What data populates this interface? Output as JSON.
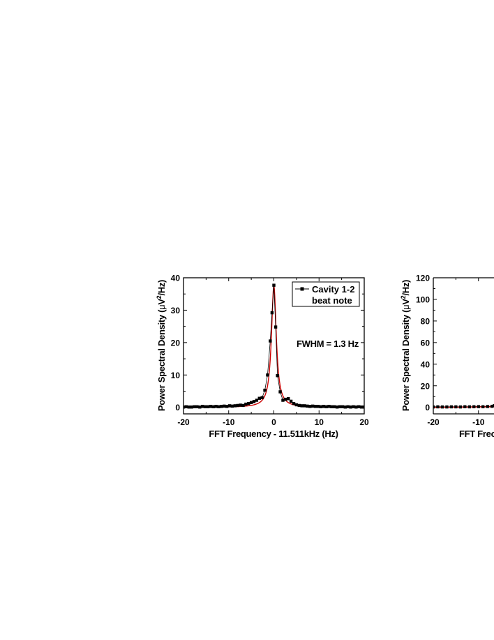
{
  "charts": [
    {
      "type": "scatter",
      "xlabel": "FFT Frequency - 11.511kHz (Hz)",
      "ylabel_main": "Power Spectral Density (",
      "ylabel_mu": "μ",
      "ylabel_v": "V",
      "ylabel_sup": "2",
      "ylabel_end": "/Hz)",
      "xlim": [
        -20,
        20
      ],
      "ylim": [
        -2,
        40
      ],
      "xticks": [
        -20,
        -10,
        0,
        10,
        20
      ],
      "yticks": [
        0,
        10,
        20,
        30,
        40
      ],
      "legend_line1": "Cavity 1-2",
      "legend_line2": "beat note",
      "legend_position": "top-right",
      "annotation": "FWHM = 1.3 Hz",
      "series": [
        {
          "name": "Cavity 1-2 beat note",
          "color": "#000000",
          "marker": "square",
          "x": [
            -20,
            -19.4,
            -18.8,
            -18.2,
            -17.6,
            -17,
            -16.4,
            -15.8,
            -15.2,
            -14.6,
            -14,
            -13.4,
            -12.8,
            -12.2,
            -11.6,
            -11,
            -10.4,
            -9.8,
            -9.2,
            -8.6,
            -8,
            -7.4,
            -6.8,
            -6.2,
            -5.6,
            -5,
            -4.4,
            -3.8,
            -3.2,
            -2.6,
            -2,
            -1.4,
            -0.8,
            -0.4,
            0,
            0.4,
            0.8,
            1.4,
            2,
            2.6,
            3.2,
            3.8,
            4.4,
            5,
            5.6,
            6.2,
            6.8,
            7.4,
            8,
            8.6,
            9.2,
            9.8,
            10.4,
            11,
            11.6,
            12.2,
            12.8,
            13.4,
            14,
            14.6,
            15.2,
            15.8,
            16.4,
            17,
            17.6,
            18.2,
            18.8,
            19.4,
            20
          ],
          "y": [
            0.1,
            0.2,
            0.1,
            0.1,
            0.2,
            0.2,
            0.1,
            0.3,
            0.2,
            0.2,
            0.3,
            0.2,
            0.3,
            0.2,
            0.3,
            0.4,
            0.3,
            0.5,
            0.4,
            0.5,
            0.6,
            0.7,
            0.6,
            1.0,
            1.2,
            1.5,
            1.8,
            2.2,
            2.8,
            3.0,
            5.3,
            10.0,
            20.5,
            29.2,
            37.7,
            24.8,
            9.8,
            4.8,
            2.2,
            2.5,
            2.7,
            1.9,
            1.2,
            0.8,
            0.6,
            0.5,
            0.5,
            0.4,
            0.3,
            0.4,
            0.3,
            0.3,
            0.2,
            0.3,
            0.2,
            0.3,
            0.2,
            0.2,
            0.1,
            0.2,
            0.2,
            0.1,
            0.2,
            0.1,
            0.2,
            0.1,
            0.2,
            0.1,
            0.1
          ]
        },
        {
          "name": "fit",
          "color": "#cc0000",
          "model": "lorentzian",
          "center": 0,
          "fwhm": 1.3,
          "peak": 37.5,
          "offset": 0
        }
      ]
    },
    {
      "type": "scatter",
      "xlabel": "FFT Frec",
      "ylabel_main": "Power Spectral Density (",
      "ylabel_mu": "μ",
      "ylabel_v": "V",
      "ylabel_sup": "2",
      "ylabel_end": "/Hz)",
      "xlim": [
        -20,
        20
      ],
      "ylim": [
        -6,
        120
      ],
      "xticks": [
        -20,
        -10
      ],
      "yticks": [
        0,
        20,
        40,
        60,
        80,
        100,
        120
      ],
      "series": [
        {
          "name": "data",
          "color": "#000000",
          "marker": "square",
          "x": [
            -20,
            -19,
            -18,
            -17,
            -16,
            -15,
            -14,
            -13,
            -12,
            -11,
            -10,
            -9,
            -8,
            -7,
            -6.5
          ],
          "y": [
            0.4,
            0.5,
            0.4,
            0.4,
            0.5,
            0.5,
            0.4,
            0.6,
            0.5,
            0.6,
            0.7,
            0.6,
            0.8,
            1.0,
            1.6
          ]
        },
        {
          "name": "fit",
          "color": "#cc0000",
          "model": "flat",
          "x": [
            -20,
            -6.5
          ],
          "y": [
            0.0,
            0.6
          ]
        }
      ]
    }
  ]
}
